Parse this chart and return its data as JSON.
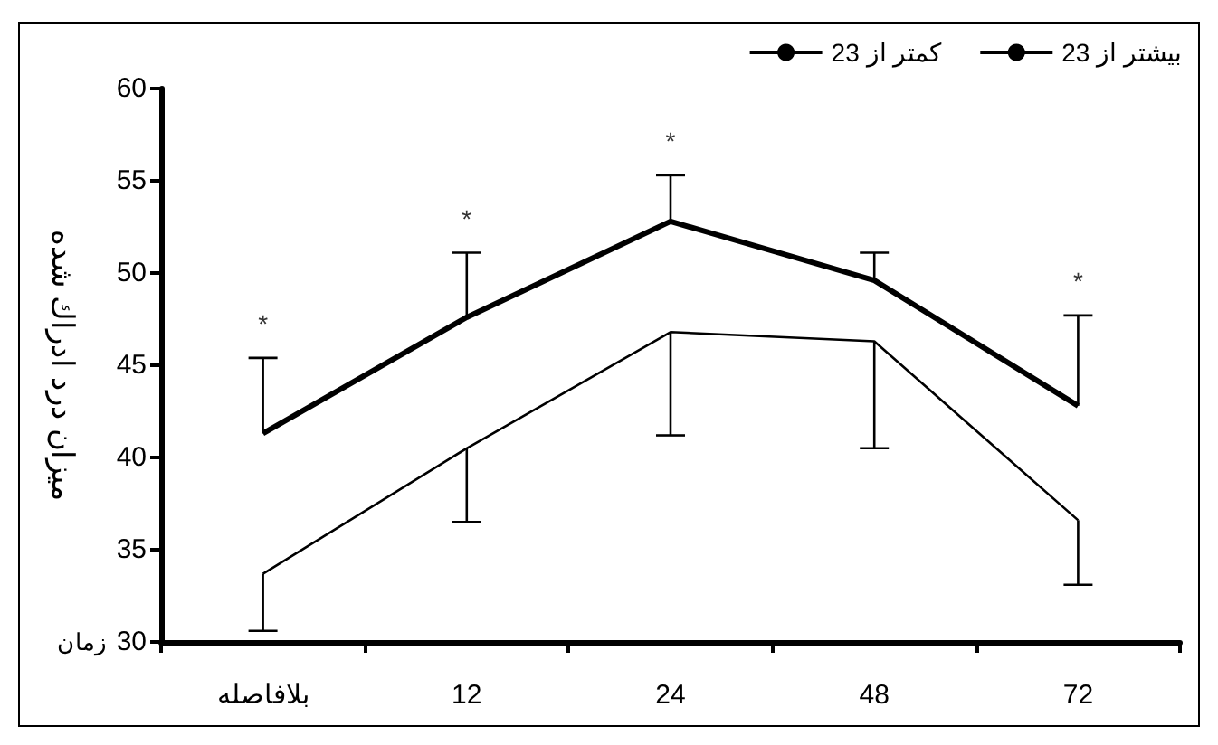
{
  "chart_data": {
    "type": "line",
    "xlabel": "زمان",
    "ylabel": "میزان درد ادراك شده",
    "categories": [
      "بلافاصله",
      "12",
      "24",
      "48",
      "72"
    ],
    "series": [
      {
        "name": "بیشتر از 23",
        "color": "#000000",
        "values": [
          41.3,
          47.6,
          52.8,
          49.6,
          42.8
        ],
        "errors": [
          [
            41.3,
            45.4
          ],
          [
            47.6,
            51.1
          ],
          [
            52.8,
            55.3
          ],
          [
            49.6,
            51.1
          ],
          [
            42.8,
            47.7
          ]
        ]
      },
      {
        "name": "کمتر از 23",
        "color": "#000000",
        "values": [
          33.7,
          40.5,
          46.8,
          46.3,
          36.6
        ],
        "errors": [
          [
            30.6,
            33.7
          ],
          [
            36.5,
            40.5
          ],
          [
            41.2,
            46.8
          ],
          [
            40.5,
            46.3
          ],
          [
            33.1,
            36.6
          ]
        ]
      }
    ],
    "ylim": [
      30,
      60
    ],
    "yticks": [
      30,
      35,
      40,
      45,
      50,
      55,
      60
    ],
    "annotations": [
      {
        "text": "*",
        "x": "بلافاصله",
        "y": 45.4
      },
      {
        "text": "*",
        "x": "12",
        "y": 51.1
      },
      {
        "text": "*",
        "x": "24",
        "y": 55.3
      },
      {
        "text": "*",
        "x": "72",
        "y": 47.7
      }
    ],
    "grid": false,
    "legend": "top right",
    "marker": "none",
    "line_style": "solid"
  }
}
